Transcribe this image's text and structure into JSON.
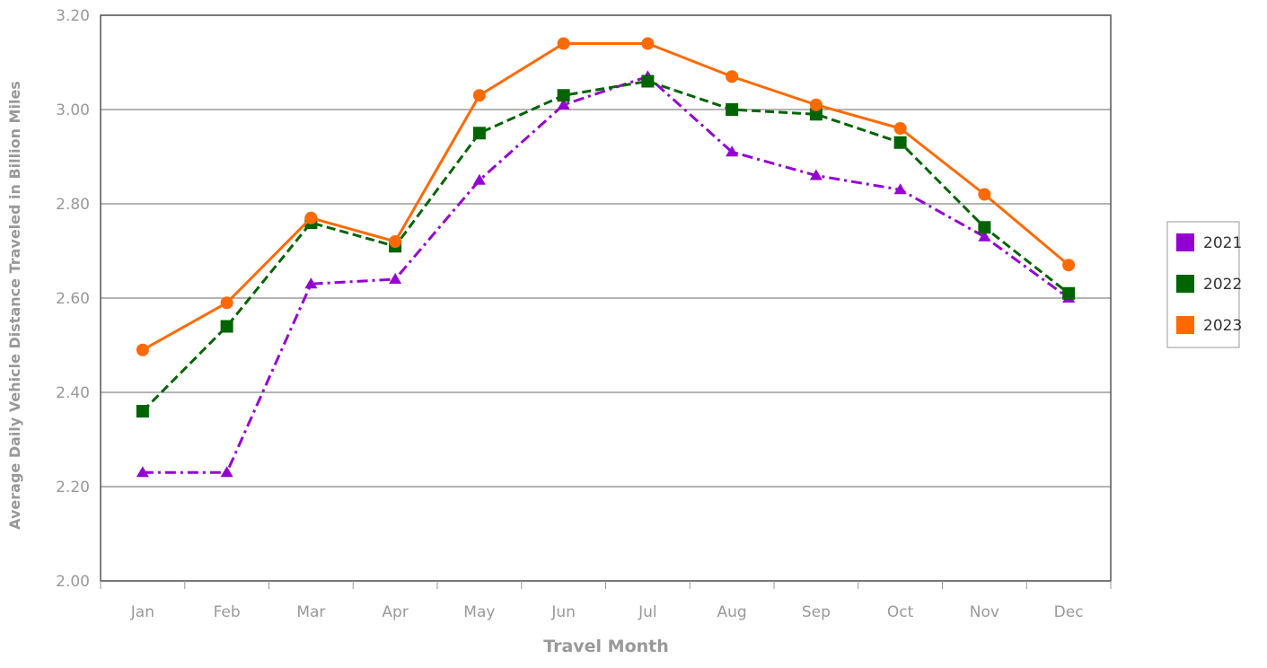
{
  "chart_data": {
    "type": "line",
    "x_label": "Travel Month",
    "y_label": "Average Daily Vehicle Distance Traveled in Billion Miles",
    "categories": [
      "Jan",
      "Feb",
      "Mar",
      "Apr",
      "May",
      "Jun",
      "Jul",
      "Aug",
      "Sep",
      "Oct",
      "Nov",
      "Dec"
    ],
    "series": [
      {
        "name": "2021",
        "color": "#9400d3",
        "marker": "triangle",
        "dash": "dashdot",
        "values": [
          2.23,
          2.23,
          2.63,
          2.64,
          2.85,
          3.01,
          3.07,
          2.91,
          2.86,
          2.83,
          2.73,
          2.6
        ]
      },
      {
        "name": "2022",
        "color": "#006400",
        "marker": "square",
        "dash": "dashed",
        "values": [
          2.36,
          2.54,
          2.76,
          2.71,
          2.95,
          3.03,
          3.06,
          3.0,
          2.99,
          2.93,
          2.75,
          2.61
        ]
      },
      {
        "name": "2023",
        "color": "#ff6a00",
        "marker": "circle",
        "dash": "solid",
        "values": [
          2.49,
          2.59,
          2.77,
          2.72,
          3.03,
          3.14,
          3.14,
          3.07,
          3.01,
          2.96,
          2.82,
          2.67
        ]
      }
    ],
    "ylim": [
      2.0,
      3.2
    ],
    "yticks": [
      {
        "value": 2.0,
        "label": "2.00"
      },
      {
        "value": 2.2,
        "label": "2.20"
      },
      {
        "value": 2.4,
        "label": "2.40"
      },
      {
        "value": 2.6,
        "label": "2.60"
      },
      {
        "value": 2.8,
        "label": "2.80"
      },
      {
        "value": 3.0,
        "label": "3.00"
      },
      {
        "value": 3.2,
        "label": "3.20"
      }
    ],
    "grid": true,
    "legend": "right"
  }
}
